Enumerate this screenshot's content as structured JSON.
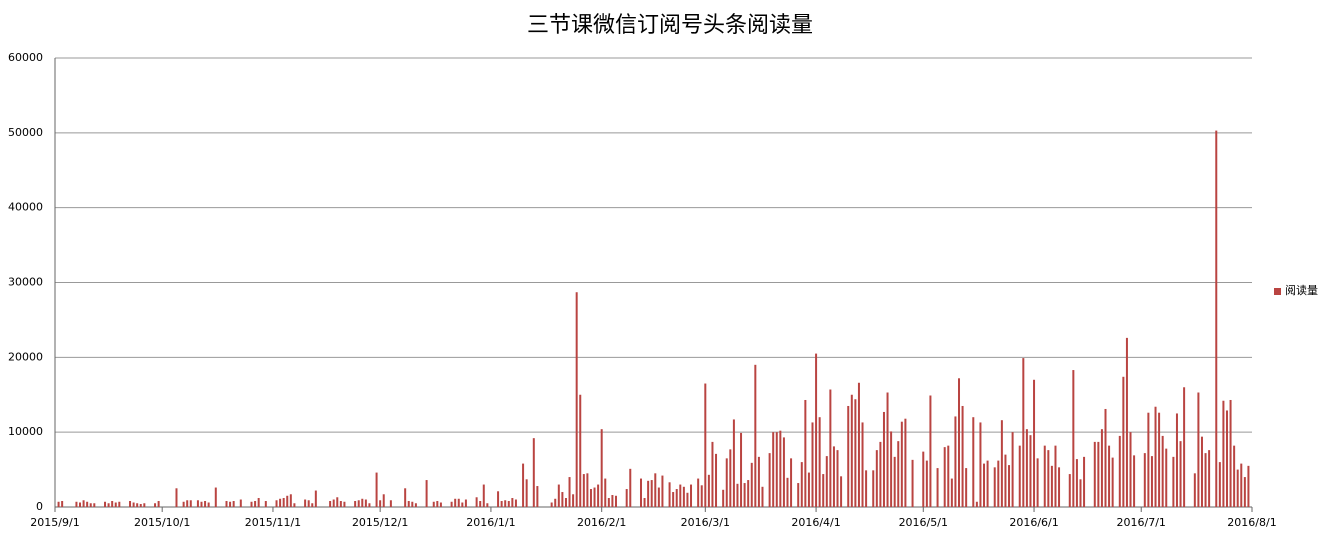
{
  "chart_data": {
    "type": "bar",
    "title": "三节课微信订阅号头条阅读量",
    "series": [
      {
        "name": "阅读量",
        "color": "#b94441",
        "x": [
          "2015/9/2",
          "2015/9/3",
          "2015/9/7",
          "2015/9/8",
          "2015/9/9",
          "2015/9/10",
          "2015/9/11",
          "2015/9/12",
          "2015/9/15",
          "2015/9/16",
          "2015/9/17",
          "2015/9/18",
          "2015/9/19",
          "2015/9/22",
          "2015/9/23",
          "2015/9/24",
          "2015/9/25",
          "2015/9/26",
          "2015/9/29",
          "2015/9/30",
          "2015/10/5",
          "2015/10/7",
          "2015/10/8",
          "2015/10/9",
          "2015/10/11",
          "2015/10/12",
          "2015/10/13",
          "2015/10/14",
          "2015/10/16",
          "2015/10/19",
          "2015/10/20",
          "2015/10/21",
          "2015/10/23",
          "2015/10/26",
          "2015/10/27",
          "2015/10/28",
          "2015/10/30",
          "2015/11/2",
          "2015/11/3",
          "2015/11/4",
          "2015/11/5",
          "2015/11/6",
          "2015/11/7",
          "2015/11/10",
          "2015/11/11",
          "2015/11/12",
          "2015/11/13",
          "2015/11/17",
          "2015/11/18",
          "2015/11/19",
          "2015/11/20",
          "2015/11/21",
          "2015/11/24",
          "2015/11/25",
          "2015/11/26",
          "2015/11/27",
          "2015/11/28",
          "2015/11/30",
          "2015/12/1",
          "2015/12/2",
          "2015/12/4",
          "2015/12/8",
          "2015/12/9",
          "2015/12/10",
          "2015/12/11",
          "2015/12/14",
          "2015/12/16",
          "2015/12/17",
          "2015/12/18",
          "2015/12/21",
          "2015/12/22",
          "2015/12/23",
          "2015/12/24",
          "2015/12/25",
          "2015/12/28",
          "2015/12/29",
          "2015/12/30",
          "2015/12/31",
          "2016/1/3",
          "2016/1/4",
          "2016/1/5",
          "2016/1/6",
          "2016/1/7",
          "2016/1/8",
          "2016/1/10",
          "2016/1/11",
          "2016/1/13",
          "2016/1/14",
          "2016/1/18",
          "2016/1/19",
          "2016/1/20",
          "2016/1/21",
          "2016/1/22",
          "2016/1/23",
          "2016/1/24",
          "2016/1/25",
          "2016/1/26",
          "2016/1/27",
          "2016/1/28",
          "2016/1/29",
          "2016/1/30",
          "2016/1/31",
          "2016/2/1",
          "2016/2/2",
          "2016/2/3",
          "2016/2/4",
          "2016/2/5",
          "2016/2/8",
          "2016/2/9",
          "2016/2/12",
          "2016/2/13",
          "2016/2/14",
          "2016/2/15",
          "2016/2/16",
          "2016/2/17",
          "2016/2/18",
          "2016/2/20",
          "2016/2/21",
          "2016/2/22",
          "2016/2/23",
          "2016/2/24",
          "2016/2/25",
          "2016/2/26",
          "2016/2/28",
          "2016/2/29",
          "2016/3/1",
          "2016/3/2",
          "2016/3/3",
          "2016/3/4",
          "2016/3/6",
          "2016/3/7",
          "2016/3/8",
          "2016/3/9",
          "2016/3/10",
          "2016/3/11",
          "2016/3/12",
          "2016/3/13",
          "2016/3/14",
          "2016/3/15",
          "2016/3/16",
          "2016/3/17",
          "2016/3/19",
          "2016/3/20",
          "2016/3/21",
          "2016/3/22",
          "2016/3/23",
          "2016/3/24",
          "2016/3/25",
          "2016/3/27",
          "2016/3/28",
          "2016/3/29",
          "2016/3/30",
          "2016/3/31",
          "2016/4/1",
          "2016/4/2",
          "2016/4/3",
          "2016/4/4",
          "2016/4/5",
          "2016/4/6",
          "2016/4/7",
          "2016/4/8",
          "2016/4/10",
          "2016/4/11",
          "2016/4/12",
          "2016/4/13",
          "2016/4/14",
          "2016/4/15",
          "2016/4/17",
          "2016/4/18",
          "2016/4/19",
          "2016/4/20",
          "2016/4/21",
          "2016/4/22",
          "2016/4/23",
          "2016/4/24",
          "2016/4/25",
          "2016/4/26",
          "2016/4/28",
          "2016/5/1",
          "2016/5/2",
          "2016/5/3",
          "2016/5/5",
          "2016/5/7",
          "2016/5/8",
          "2016/5/9",
          "2016/5/10",
          "2016/5/11",
          "2016/5/12",
          "2016/5/13",
          "2016/5/15",
          "2016/5/16",
          "2016/5/17",
          "2016/5/18",
          "2016/5/19",
          "2016/5/21",
          "2016/5/22",
          "2016/5/23",
          "2016/5/24",
          "2016/5/25",
          "2016/5/26",
          "2016/5/28",
          "2016/5/29",
          "2016/5/30",
          "2016/5/31",
          "2016/6/1",
          "2016/6/2",
          "2016/6/4",
          "2016/6/5",
          "2016/6/6",
          "2016/6/7",
          "2016/6/8",
          "2016/6/11",
          "2016/6/12",
          "2016/6/13",
          "2016/6/14",
          "2016/6/15",
          "2016/6/18",
          "2016/6/19",
          "2016/6/20",
          "2016/6/21",
          "2016/6/22",
          "2016/6/23",
          "2016/6/25",
          "2016/6/26",
          "2016/6/27",
          "2016/6/28",
          "2016/6/29",
          "2016/7/2",
          "2016/7/3",
          "2016/7/4",
          "2016/7/5",
          "2016/7/6",
          "2016/7/7",
          "2016/7/8",
          "2016/7/10",
          "2016/7/11",
          "2016/7/12",
          "2016/7/13",
          "2016/7/16",
          "2016/7/17",
          "2016/7/18",
          "2016/7/19",
          "2016/7/20",
          "2016/7/22",
          "2016/7/23",
          "2016/7/24",
          "2016/7/25",
          "2016/7/26",
          "2016/7/27",
          "2016/7/28",
          "2016/7/29",
          "2016/7/30",
          "2016/7/31"
        ],
        "values": [
          700,
          800,
          700,
          600,
          900,
          700,
          500,
          500,
          700,
          500,
          800,
          600,
          700,
          800,
          600,
          500,
          400,
          500,
          500,
          800,
          2500,
          700,
          900,
          900,
          900,
          700,
          800,
          600,
          2600,
          800,
          700,
          800,
          1000,
          700,
          800,
          1200,
          800,
          900,
          1100,
          1200,
          1500,
          1700,
          500,
          1000,
          900,
          500,
          2200,
          800,
          1000,
          1300,
          800,
          700,
          800,
          900,
          1100,
          1000,
          500,
          4600,
          900,
          1700,
          900,
          2500,
          800,
          700,
          500,
          3600,
          700,
          800,
          600,
          700,
          1100,
          1100,
          600,
          1000,
          1300,
          800,
          3000,
          500,
          2100,
          800,
          900,
          800,
          1200,
          1000,
          5800,
          3700,
          9200,
          2800,
          600,
          1100,
          3000,
          2000,
          1200,
          4000,
          1700,
          28700,
          15000,
          4400,
          4500,
          2400,
          2600,
          3000,
          10400,
          3800,
          1200,
          1600,
          1500,
          2400,
          5100,
          3800,
          1200,
          3500,
          3600,
          4500,
          2600,
          4200,
          3300,
          2000,
          2400,
          3000,
          2700,
          1900,
          3000,
          3800,
          2900,
          16500,
          4300,
          8700,
          7100,
          2300,
          6500,
          7700,
          11700,
          3100,
          9900,
          3200,
          3600,
          5900,
          19000,
          6700,
          2700,
          7200,
          10000,
          10000,
          10200,
          9300,
          3900,
          6500,
          3200,
          6000,
          14300,
          4600,
          11300,
          20500,
          12000,
          4400,
          6800,
          15700,
          8100,
          7600,
          4100,
          13500,
          15000,
          14400,
          16600,
          11300,
          4900,
          4900,
          7600,
          8700,
          12700,
          15300,
          10100,
          6700,
          8800,
          11400,
          11800,
          6300,
          7400,
          6200,
          14900,
          5200,
          8000,
          8200,
          3800,
          12100,
          17200,
          13500,
          5200,
          12000,
          700,
          11300,
          5800,
          6200,
          5300,
          6200,
          11600,
          7000,
          5600,
          10000,
          8200,
          19900,
          10400,
          9600,
          17000,
          6500,
          8200,
          7600,
          5500,
          8200,
          5300,
          4400,
          18300,
          6400,
          3700,
          6700,
          8700,
          8700,
          10400,
          13100,
          8200,
          6600,
          9500,
          17400,
          22600,
          10000,
          6900,
          7200,
          12600,
          6800,
          13400,
          12600,
          9500,
          7800,
          6700,
          12500,
          8800,
          16000,
          4500,
          15300,
          9400,
          7200,
          7600,
          50300,
          6000,
          14200,
          12900,
          14300,
          8200,
          5000,
          5800,
          4000,
          5500
        ]
      }
    ],
    "xlim": [
      "2015/9/1",
      "2016/8/1"
    ],
    "xticks": [
      "2015/9/1",
      "2015/10/1",
      "2015/11/1",
      "2015/12/1",
      "2016/1/1",
      "2016/2/1",
      "2016/3/1",
      "2016/4/1",
      "2016/5/1",
      "2016/6/1",
      "2016/7/1",
      "2016/8/1"
    ],
    "ylim": [
      0,
      60000
    ],
    "yticks": [
      0,
      10000,
      20000,
      30000,
      40000,
      50000,
      60000
    ],
    "grid": true,
    "legend": "right"
  }
}
